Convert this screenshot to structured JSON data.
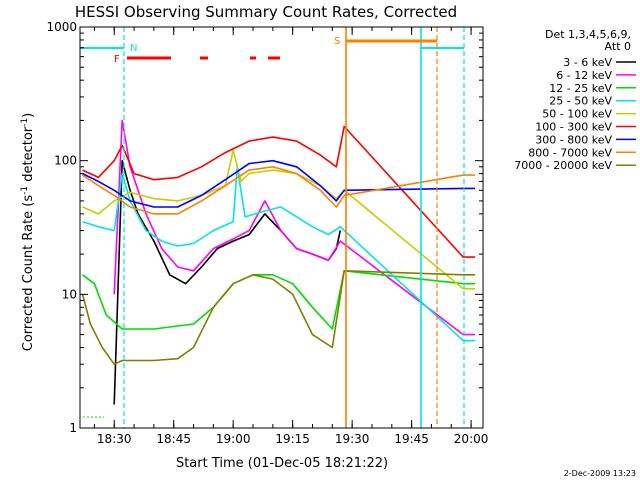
{
  "chart_data": {
    "type": "line",
    "title": "HESSI Observing Summary Count Rates, Corrected",
    "xlabel": "Start Time (01-Dec-05 18:21:22)",
    "ylabel_main": "Corrected Count Rate (s",
    "ylabel_sup1": "-1",
    "ylabel_mid": " detector",
    "ylabel_sup2": "-1",
    "ylabel_end": ")",
    "y_scale": "log",
    "ylim": [
      1,
      1000
    ],
    "xlim": [
      "18:21:22",
      "20:03:00"
    ],
    "x_ticks": [
      "18:30",
      "18:45",
      "19:00",
      "19:15",
      "19:30",
      "19:45",
      "20:00"
    ],
    "y_ticks": [
      "1",
      "10",
      "100",
      "1000"
    ],
    "legend_position": "right",
    "legend_header": [
      "Det 1,3,4,5,6,9,",
      "Att 0"
    ],
    "footer_date": "2-Dec-2009 13:23",
    "flags": [
      {
        "label": "N",
        "color": "#00e5e5"
      },
      {
        "label": "F",
        "color": "#ff0000"
      },
      {
        "label": "S",
        "color": "#ff7f00"
      }
    ],
    "series": [
      {
        "name": "3 - 6 keV",
        "color": "#000000",
        "x": [
          "18:30",
          "18:32",
          "18:34",
          "18:36",
          "18:40",
          "18:44",
          "18:48",
          "18:52",
          "18:56",
          "19:00",
          "19:04",
          "19:08",
          "19:12",
          "19:16",
          "19:20",
          "19:24",
          "19:26",
          "19:27",
          "19:58",
          "20:01"
        ],
        "y": [
          1.5,
          100,
          60,
          40,
          25,
          14,
          12,
          16,
          22,
          25,
          28,
          40,
          30,
          22,
          20,
          18,
          22,
          30,
          null,
          null
        ]
      },
      {
        "name": "6 - 12 keV",
        "color": "#ff00ff",
        "x": [
          "18:30",
          "18:32",
          "18:34",
          "18:38",
          "18:42",
          "18:46",
          "18:50",
          "18:55",
          "19:00",
          "19:04",
          "19:08",
          "19:12",
          "19:16",
          "19:20",
          "19:24",
          "19:27",
          "19:58",
          "20:01"
        ],
        "y": [
          10,
          200,
          90,
          40,
          22,
          16,
          15,
          22,
          26,
          30,
          50,
          30,
          22,
          20,
          18,
          25,
          5,
          5
        ]
      },
      {
        "name": "12 - 25 keV",
        "color": "#00dd00",
        "x": [
          "18:22",
          "18:25",
          "18:28",
          "18:32",
          "18:40",
          "18:50",
          "18:55",
          "19:00",
          "19:05",
          "19:10",
          "19:15",
          "19:20",
          "19:25",
          "19:28",
          "19:58",
          "20:01"
        ],
        "y": [
          14,
          12,
          7,
          5.5,
          5.5,
          6,
          8,
          12,
          14,
          14,
          12,
          8,
          5.5,
          15,
          12,
          12
        ]
      },
      {
        "name": "25 - 50 keV",
        "color": "#00e5e5",
        "x": [
          "18:22",
          "18:26",
          "18:30",
          "18:32",
          "18:34",
          "18:38",
          "18:42",
          "18:46",
          "18:50",
          "18:55",
          "19:00",
          "19:01",
          "19:03",
          "19:08",
          "19:12",
          "19:16",
          "19:20",
          "19:24",
          "19:27",
          "19:58",
          "20:01"
        ],
        "y": [
          35,
          32,
          30,
          80,
          50,
          30,
          25,
          23,
          24,
          30,
          35,
          90,
          38,
          42,
          45,
          38,
          32,
          28,
          32,
          4.5,
          4.5
        ]
      },
      {
        "name": "50 - 100 keV",
        "color": "#cccc00",
        "x": [
          "18:22",
          "18:26",
          "18:30",
          "18:34",
          "18:40",
          "18:46",
          "18:52",
          "18:58",
          "19:00",
          "19:02",
          "19:04",
          "19:10",
          "19:16",
          "19:22",
          "19:26",
          "19:28",
          "19:58",
          "20:01"
        ],
        "y": [
          45,
          40,
          50,
          58,
          52,
          50,
          55,
          65,
          120,
          70,
          80,
          85,
          80,
          65,
          52,
          60,
          11,
          11
        ]
      },
      {
        "name": "100 - 300 keV",
        "color": "#ff0000",
        "x": [
          "18:22",
          "18:26",
          "18:30",
          "18:32",
          "18:35",
          "18:40",
          "18:46",
          "18:52",
          "18:58",
          "19:04",
          "19:10",
          "19:16",
          "19:22",
          "19:26",
          "19:28",
          "19:58",
          "20:01"
        ],
        "y": [
          85,
          75,
          100,
          130,
          80,
          72,
          75,
          90,
          115,
          140,
          150,
          140,
          110,
          90,
          180,
          19,
          19
        ]
      },
      {
        "name": "300 - 800 keV",
        "color": "#0000ff",
        "x": [
          "18:22",
          "18:26",
          "18:30",
          "18:34",
          "18:40",
          "18:46",
          "18:52",
          "18:58",
          "19:04",
          "19:10",
          "19:16",
          "19:22",
          "19:26",
          "19:28",
          "19:58",
          "20:01"
        ],
        "y": [
          80,
          70,
          60,
          50,
          45,
          45,
          55,
          72,
          95,
          100,
          90,
          65,
          50,
          60,
          62,
          62
        ]
      },
      {
        "name": "800 - 7000 keV",
        "color": "#ff7f00",
        "x": [
          "18:22",
          "18:26",
          "18:30",
          "18:34",
          "18:40",
          "18:46",
          "18:52",
          "18:58",
          "19:04",
          "19:10",
          "19:16",
          "19:22",
          "19:26",
          "19:28",
          "19:58",
          "20:01"
        ],
        "y": [
          78,
          65,
          55,
          45,
          40,
          40,
          50,
          65,
          85,
          90,
          80,
          60,
          45,
          55,
          78,
          78
        ]
      },
      {
        "name": "7000 - 20000 keV",
        "color": "#808000",
        "x": [
          "18:22",
          "18:24",
          "18:27",
          "18:30",
          "18:32",
          "18:40",
          "18:46",
          "18:50",
          "18:55",
          "19:00",
          "19:05",
          "19:10",
          "19:15",
          "19:20",
          "19:25",
          "19:28",
          "19:58",
          "20:01"
        ],
        "y": [
          10,
          6,
          4,
          3,
          3.2,
          3.2,
          3.3,
          4,
          8,
          12,
          14,
          13,
          10,
          5,
          4,
          15,
          14,
          14
        ]
      }
    ]
  }
}
